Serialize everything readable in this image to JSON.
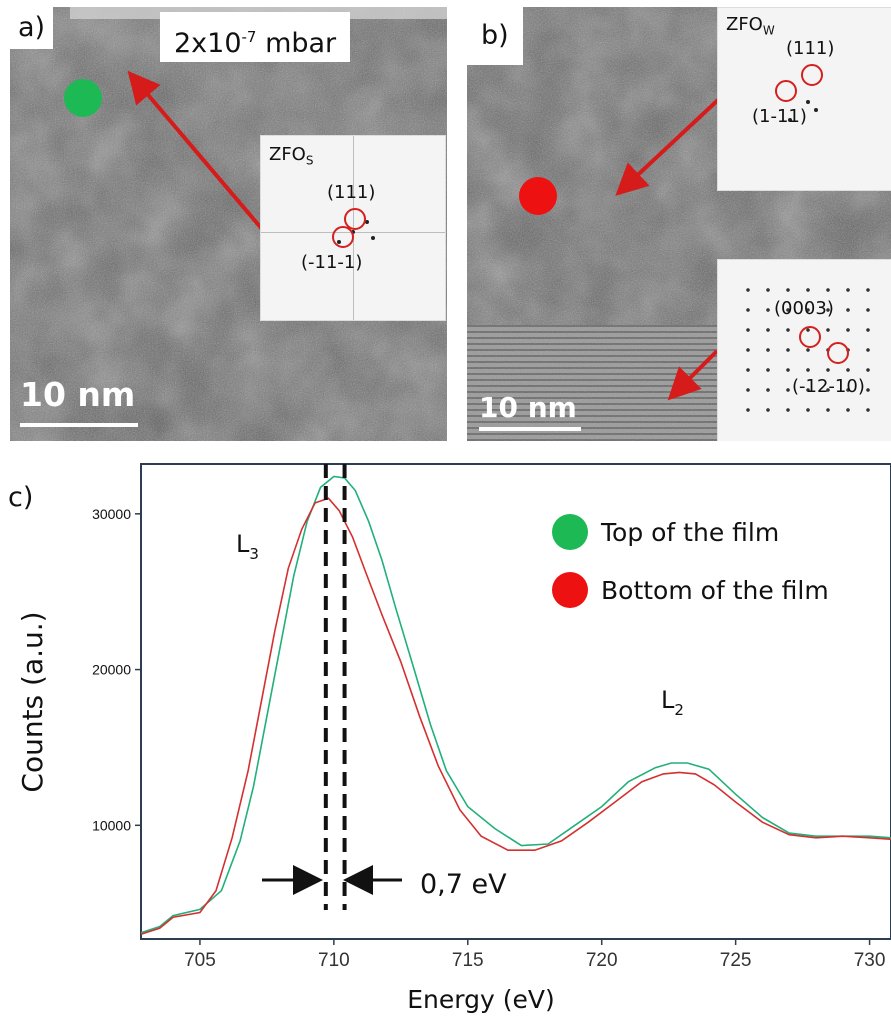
{
  "panel_a": {
    "label": "a)",
    "pressure": "2x10",
    "pressure_exp": "-7",
    "pressure_unit": " mbar",
    "inset_title": "ZFO",
    "inset_sub": "S",
    "idx1": "(111)",
    "idx2": "(-11-1)",
    "scale": "10 nm",
    "marker_color": "#1db954"
  },
  "panel_b": {
    "label": "b)",
    "inset1_title": "ZFO",
    "inset1_sub": "W",
    "idx1": "(111)",
    "idx2": "(1-11)",
    "idx3": "(0003)",
    "idx4": "(-12-10)",
    "scale": "10 nm",
    "marker_color": "#ee1111"
  },
  "panel_c": {
    "label": "c)",
    "l3": "L",
    "l3_sub": "3",
    "l2": "L",
    "l2_sub": "2",
    "shift": "0,7 eV"
  },
  "chart_data": {
    "type": "line",
    "xlabel": "Energy (eV)",
    "ylabel": "Counts (a.u.)",
    "xlim": [
      702.8,
      730.8
    ],
    "ylim": [
      2700,
      33200
    ],
    "xticks": [
      705,
      710,
      715,
      720,
      725,
      730
    ],
    "yticks": [
      10000,
      20000,
      30000
    ],
    "legend_placement": "top-right",
    "markers_x": [
      709.7,
      710.4
    ],
    "series": [
      {
        "name": "Top of the film",
        "color": "#22b07a",
        "x": [
          702.8,
          703.5,
          704.0,
          705.0,
          705.8,
          706.5,
          707.0,
          707.5,
          708.0,
          708.5,
          709.0,
          709.5,
          710.0,
          710.4,
          710.8,
          711.3,
          711.8,
          712.3,
          713.0,
          713.6,
          714.2,
          715.0,
          716.0,
          717.0,
          718.0,
          719.0,
          720.0,
          721.0,
          722.0,
          722.6,
          723.2,
          724.0,
          725.0,
          726.0,
          727.0,
          728.0,
          729.0,
          730.0,
          730.8
        ],
        "y": [
          3100,
          3500,
          4200,
          4600,
          5800,
          9000,
          12500,
          17000,
          21500,
          26000,
          29500,
          31700,
          32400,
          32300,
          31500,
          29500,
          27000,
          24000,
          20000,
          16500,
          13500,
          11200,
          9800,
          8700,
          8800,
          10000,
          11200,
          12800,
          13700,
          14000,
          14000,
          13600,
          12000,
          10500,
          9500,
          9300,
          9300,
          9300,
          9200
        ]
      },
      {
        "name": "Bottom of the film",
        "color": "#d43030",
        "x": [
          702.8,
          703.5,
          704.0,
          705.0,
          705.6,
          706.2,
          706.8,
          707.3,
          707.8,
          708.3,
          708.8,
          709.3,
          709.8,
          710.2,
          710.7,
          711.2,
          711.8,
          712.5,
          713.2,
          713.9,
          714.7,
          715.5,
          716.5,
          717.5,
          718.5,
          719.5,
          720.5,
          721.5,
          722.3,
          722.9,
          723.5,
          724.2,
          725.0,
          726.0,
          727.0,
          728.0,
          729.0,
          730.0,
          730.8
        ],
        "y": [
          3000,
          3400,
          4100,
          4400,
          5800,
          9200,
          13500,
          18000,
          22500,
          26500,
          29000,
          30700,
          31000,
          30200,
          28500,
          26200,
          23500,
          20500,
          17000,
          13800,
          11000,
          9300,
          8400,
          8400,
          9000,
          10200,
          11500,
          12800,
          13300,
          13400,
          13300,
          12600,
          11500,
          10200,
          9400,
          9200,
          9300,
          9200,
          9100
        ]
      }
    ]
  }
}
